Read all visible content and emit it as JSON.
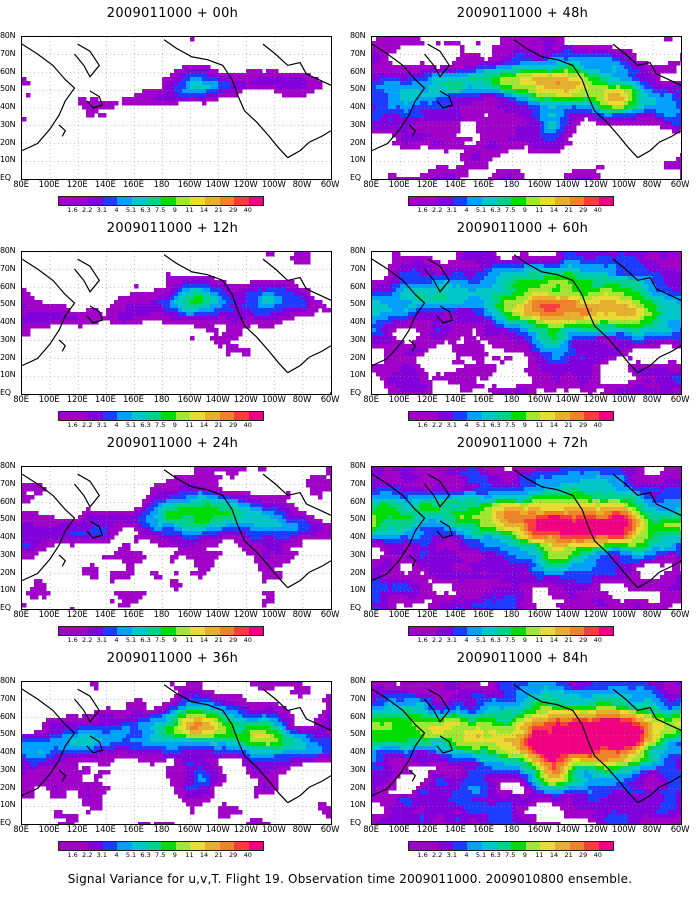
{
  "caption": "Signal Variance for u,v,T. Flight 19. Observation time 2009011000. 2009010800 ensemble.",
  "panels": [
    {
      "title": "2009011000 + 00h",
      "intensity": 0
    },
    {
      "title": "2009011000 + 48h",
      "intensity": 4
    },
    {
      "title": "2009011000 + 12h",
      "intensity": 1
    },
    {
      "title": "2009011000 + 60h",
      "intensity": 5
    },
    {
      "title": "2009011000 + 24h",
      "intensity": 2
    },
    {
      "title": "2009011000 + 72h",
      "intensity": 6
    },
    {
      "title": "2009011000 + 36h",
      "intensity": 3
    },
    {
      "title": "2009011000 + 84h",
      "intensity": 7
    }
  ],
  "lon_labels": [
    "80E",
    "100E",
    "120E",
    "140E",
    "160E",
    "180",
    "160W",
    "140W",
    "120W",
    "100W",
    "80W",
    "60W"
  ],
  "lat_labels": [
    "80N",
    "70N",
    "60N",
    "50N",
    "40N",
    "30N",
    "20N",
    "10N",
    "EQ"
  ],
  "colorbar": {
    "levels": [
      "1.6",
      "2.2",
      "3.1",
      "4",
      "5.1",
      "6.3",
      "7.5",
      "9",
      "11",
      "14",
      "21",
      "29",
      "40"
    ],
    "colors": [
      "#a000c8",
      "#8200dc",
      "#1e3cff",
      "#00a0ff",
      "#00c8c8",
      "#00d28c",
      "#00dc00",
      "#a0e632",
      "#e6dc32",
      "#e6af2d",
      "#f08228",
      "#fa3c3c",
      "#f00082"
    ]
  }
}
